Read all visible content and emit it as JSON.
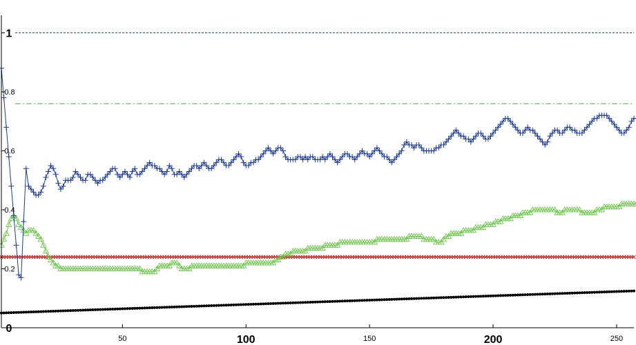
{
  "chart_data": {
    "type": "line",
    "title": "",
    "xlabel": "",
    "ylabel": "",
    "xlim": [
      1,
      257
    ],
    "ylim": [
      0,
      1.06
    ],
    "grid": false,
    "x_ticks": [
      {
        "value": 50,
        "label": "50",
        "big": false
      },
      {
        "value": 100,
        "label": "100",
        "big": true
      },
      {
        "value": 150,
        "label": "150",
        "big": false
      },
      {
        "value": 200,
        "label": "200",
        "big": true
      },
      {
        "value": 250,
        "label": "250",
        "big": false
      }
    ],
    "y_ticks": [
      {
        "value": 0,
        "label": "0",
        "big": true
      },
      {
        "value": 0.2,
        "label": "0.2",
        "big": false
      },
      {
        "value": 0.4,
        "label": "0.4",
        "big": false
      },
      {
        "value": 0.6,
        "label": "0.6",
        "big": false
      },
      {
        "value": 0.8,
        "label": "0.8",
        "big": false
      },
      {
        "value": 1,
        "label": "1",
        "big": true
      }
    ],
    "reference_lines": [
      {
        "y": 1.0,
        "color": "#1f3f8f",
        "style": "dashed"
      },
      {
        "y": 0.76,
        "color": "#55bb33",
        "style": "dashdot"
      }
    ],
    "series": [
      {
        "color": "#1a3a9a",
        "marker": "plus",
        "start_x": 1,
        "values": [
          0.88,
          0.78,
          0.68,
          0.58,
          0.48,
          0.38,
          0.28,
          0.18,
          0.17,
          0.36,
          0.54,
          0.48,
          0.47,
          0.46,
          0.45,
          0.45,
          0.46,
          0.48,
          0.51,
          0.53,
          0.55,
          0.54,
          0.52,
          0.49,
          0.47,
          0.48,
          0.5,
          0.5,
          0.5,
          0.51,
          0.53,
          0.52,
          0.51,
          0.5,
          0.5,
          0.52,
          0.52,
          0.51,
          0.5,
          0.49,
          0.5,
          0.5,
          0.51,
          0.52,
          0.53,
          0.54,
          0.54,
          0.52,
          0.51,
          0.52,
          0.53,
          0.52,
          0.51,
          0.53,
          0.54,
          0.52,
          0.52,
          0.53,
          0.54,
          0.55,
          0.56,
          0.55,
          0.55,
          0.54,
          0.54,
          0.53,
          0.52,
          0.53,
          0.55,
          0.54,
          0.52,
          0.52,
          0.53,
          0.52,
          0.51,
          0.52,
          0.53,
          0.54,
          0.55,
          0.55,
          0.54,
          0.55,
          0.56,
          0.55,
          0.54,
          0.54,
          0.55,
          0.56,
          0.57,
          0.57,
          0.56,
          0.55,
          0.55,
          0.56,
          0.57,
          0.58,
          0.59,
          0.58,
          0.56,
          0.55,
          0.55,
          0.56,
          0.56,
          0.57,
          0.57,
          0.58,
          0.59,
          0.6,
          0.61,
          0.6,
          0.59,
          0.6,
          0.61,
          0.61,
          0.6,
          0.58,
          0.57,
          0.57,
          0.57,
          0.57,
          0.58,
          0.58,
          0.57,
          0.58,
          0.57,
          0.58,
          0.58,
          0.57,
          0.57,
          0.57,
          0.58,
          0.57,
          0.58,
          0.59,
          0.58,
          0.57,
          0.56,
          0.57,
          0.58,
          0.59,
          0.59,
          0.58,
          0.58,
          0.57,
          0.58,
          0.59,
          0.6,
          0.59,
          0.59,
          0.58,
          0.59,
          0.6,
          0.61,
          0.6,
          0.59,
          0.58,
          0.58,
          0.57,
          0.56,
          0.57,
          0.58,
          0.59,
          0.6,
          0.62,
          0.63,
          0.62,
          0.62,
          0.61,
          0.62,
          0.62,
          0.61,
          0.6,
          0.6,
          0.6,
          0.6,
          0.6,
          0.61,
          0.61,
          0.62,
          0.62,
          0.63,
          0.64,
          0.65,
          0.66,
          0.67,
          0.66,
          0.65,
          0.65,
          0.64,
          0.64,
          0.63,
          0.64,
          0.65,
          0.66,
          0.66,
          0.65,
          0.64,
          0.64,
          0.65,
          0.66,
          0.67,
          0.68,
          0.69,
          0.7,
          0.71,
          0.71,
          0.7,
          0.69,
          0.68,
          0.67,
          0.66,
          0.66,
          0.67,
          0.68,
          0.67,
          0.67,
          0.66,
          0.65,
          0.64,
          0.63,
          0.62,
          0.63,
          0.65,
          0.66,
          0.67,
          0.67,
          0.66,
          0.66,
          0.67,
          0.68,
          0.68,
          0.67,
          0.67,
          0.66,
          0.66,
          0.66,
          0.67,
          0.68,
          0.69,
          0.7,
          0.71,
          0.71,
          0.72,
          0.72,
          0.72,
          0.72,
          0.71,
          0.7,
          0.69,
          0.68,
          0.67,
          0.66,
          0.66,
          0.67,
          0.68,
          0.7,
          0.71,
          0.71,
          0.72,
          0.72
        ]
      },
      {
        "color": "#6cc84a",
        "marker": "triangle",
        "start_x": 1,
        "values": [
          0.28,
          0.3,
          0.32,
          0.35,
          0.37,
          0.38,
          0.37,
          0.35,
          0.34,
          0.33,
          0.32,
          0.33,
          0.33,
          0.33,
          0.32,
          0.31,
          0.3,
          0.28,
          0.26,
          0.24,
          0.23,
          0.22,
          0.21,
          0.21,
          0.2,
          0.2,
          0.2,
          0.2,
          0.2,
          0.2,
          0.2,
          0.2,
          0.2,
          0.2,
          0.2,
          0.2,
          0.2,
          0.2,
          0.2,
          0.2,
          0.2,
          0.2,
          0.2,
          0.2,
          0.2,
          0.2,
          0.2,
          0.2,
          0.2,
          0.2,
          0.2,
          0.2,
          0.2,
          0.2,
          0.2,
          0.2,
          0.2,
          0.19,
          0.19,
          0.19,
          0.19,
          0.19,
          0.19,
          0.2,
          0.21,
          0.21,
          0.21,
          0.21,
          0.21,
          0.22,
          0.22,
          0.22,
          0.21,
          0.2,
          0.2,
          0.2,
          0.2,
          0.21,
          0.21,
          0.21,
          0.21,
          0.21,
          0.21,
          0.21,
          0.21,
          0.21,
          0.21,
          0.21,
          0.21,
          0.21,
          0.21,
          0.21,
          0.21,
          0.21,
          0.21,
          0.21,
          0.21,
          0.21,
          0.21,
          0.22,
          0.22,
          0.22,
          0.22,
          0.22,
          0.22,
          0.22,
          0.22,
          0.22,
          0.22,
          0.22,
          0.22,
          0.23,
          0.23,
          0.24,
          0.24,
          0.25,
          0.25,
          0.25,
          0.26,
          0.26,
          0.26,
          0.26,
          0.26,
          0.26,
          0.27,
          0.27,
          0.27,
          0.27,
          0.27,
          0.27,
          0.27,
          0.28,
          0.28,
          0.28,
          0.28,
          0.28,
          0.28,
          0.29,
          0.29,
          0.29,
          0.29,
          0.29,
          0.29,
          0.29,
          0.29,
          0.29,
          0.29,
          0.29,
          0.29,
          0.29,
          0.29,
          0.29,
          0.3,
          0.3,
          0.3,
          0.3,
          0.3,
          0.3,
          0.3,
          0.3,
          0.3,
          0.3,
          0.3,
          0.3,
          0.3,
          0.31,
          0.31,
          0.31,
          0.31,
          0.31,
          0.31,
          0.3,
          0.3,
          0.3,
          0.3,
          0.3,
          0.29,
          0.29,
          0.29,
          0.3,
          0.31,
          0.31,
          0.32,
          0.32,
          0.32,
          0.32,
          0.32,
          0.33,
          0.33,
          0.33,
          0.33,
          0.33,
          0.34,
          0.34,
          0.34,
          0.34,
          0.35,
          0.35,
          0.35,
          0.35,
          0.36,
          0.36,
          0.36,
          0.37,
          0.37,
          0.37,
          0.37,
          0.38,
          0.38,
          0.38,
          0.38,
          0.39,
          0.39,
          0.39,
          0.39,
          0.4,
          0.4,
          0.4,
          0.4,
          0.4,
          0.4,
          0.4,
          0.4,
          0.4,
          0.4,
          0.39,
          0.39,
          0.39,
          0.4,
          0.4,
          0.4,
          0.4,
          0.4,
          0.4,
          0.4,
          0.39,
          0.39,
          0.39,
          0.39,
          0.39,
          0.39,
          0.4,
          0.4,
          0.4,
          0.41,
          0.41,
          0.41,
          0.41,
          0.41,
          0.41,
          0.41,
          0.42,
          0.42,
          0.42,
          0.42,
          0.42,
          0.42,
          0.42,
          0.42,
          0.42,
          0.42,
          0.42
        ]
      },
      {
        "color": "#cc2222",
        "marker": "x",
        "start_x": 1,
        "constant": 0.24,
        "count": 257
      },
      {
        "color": "#000000",
        "marker": "dot",
        "start_x": 1,
        "linear": {
          "from": 0.05,
          "to": 0.125
        },
        "count": 257
      }
    ]
  }
}
